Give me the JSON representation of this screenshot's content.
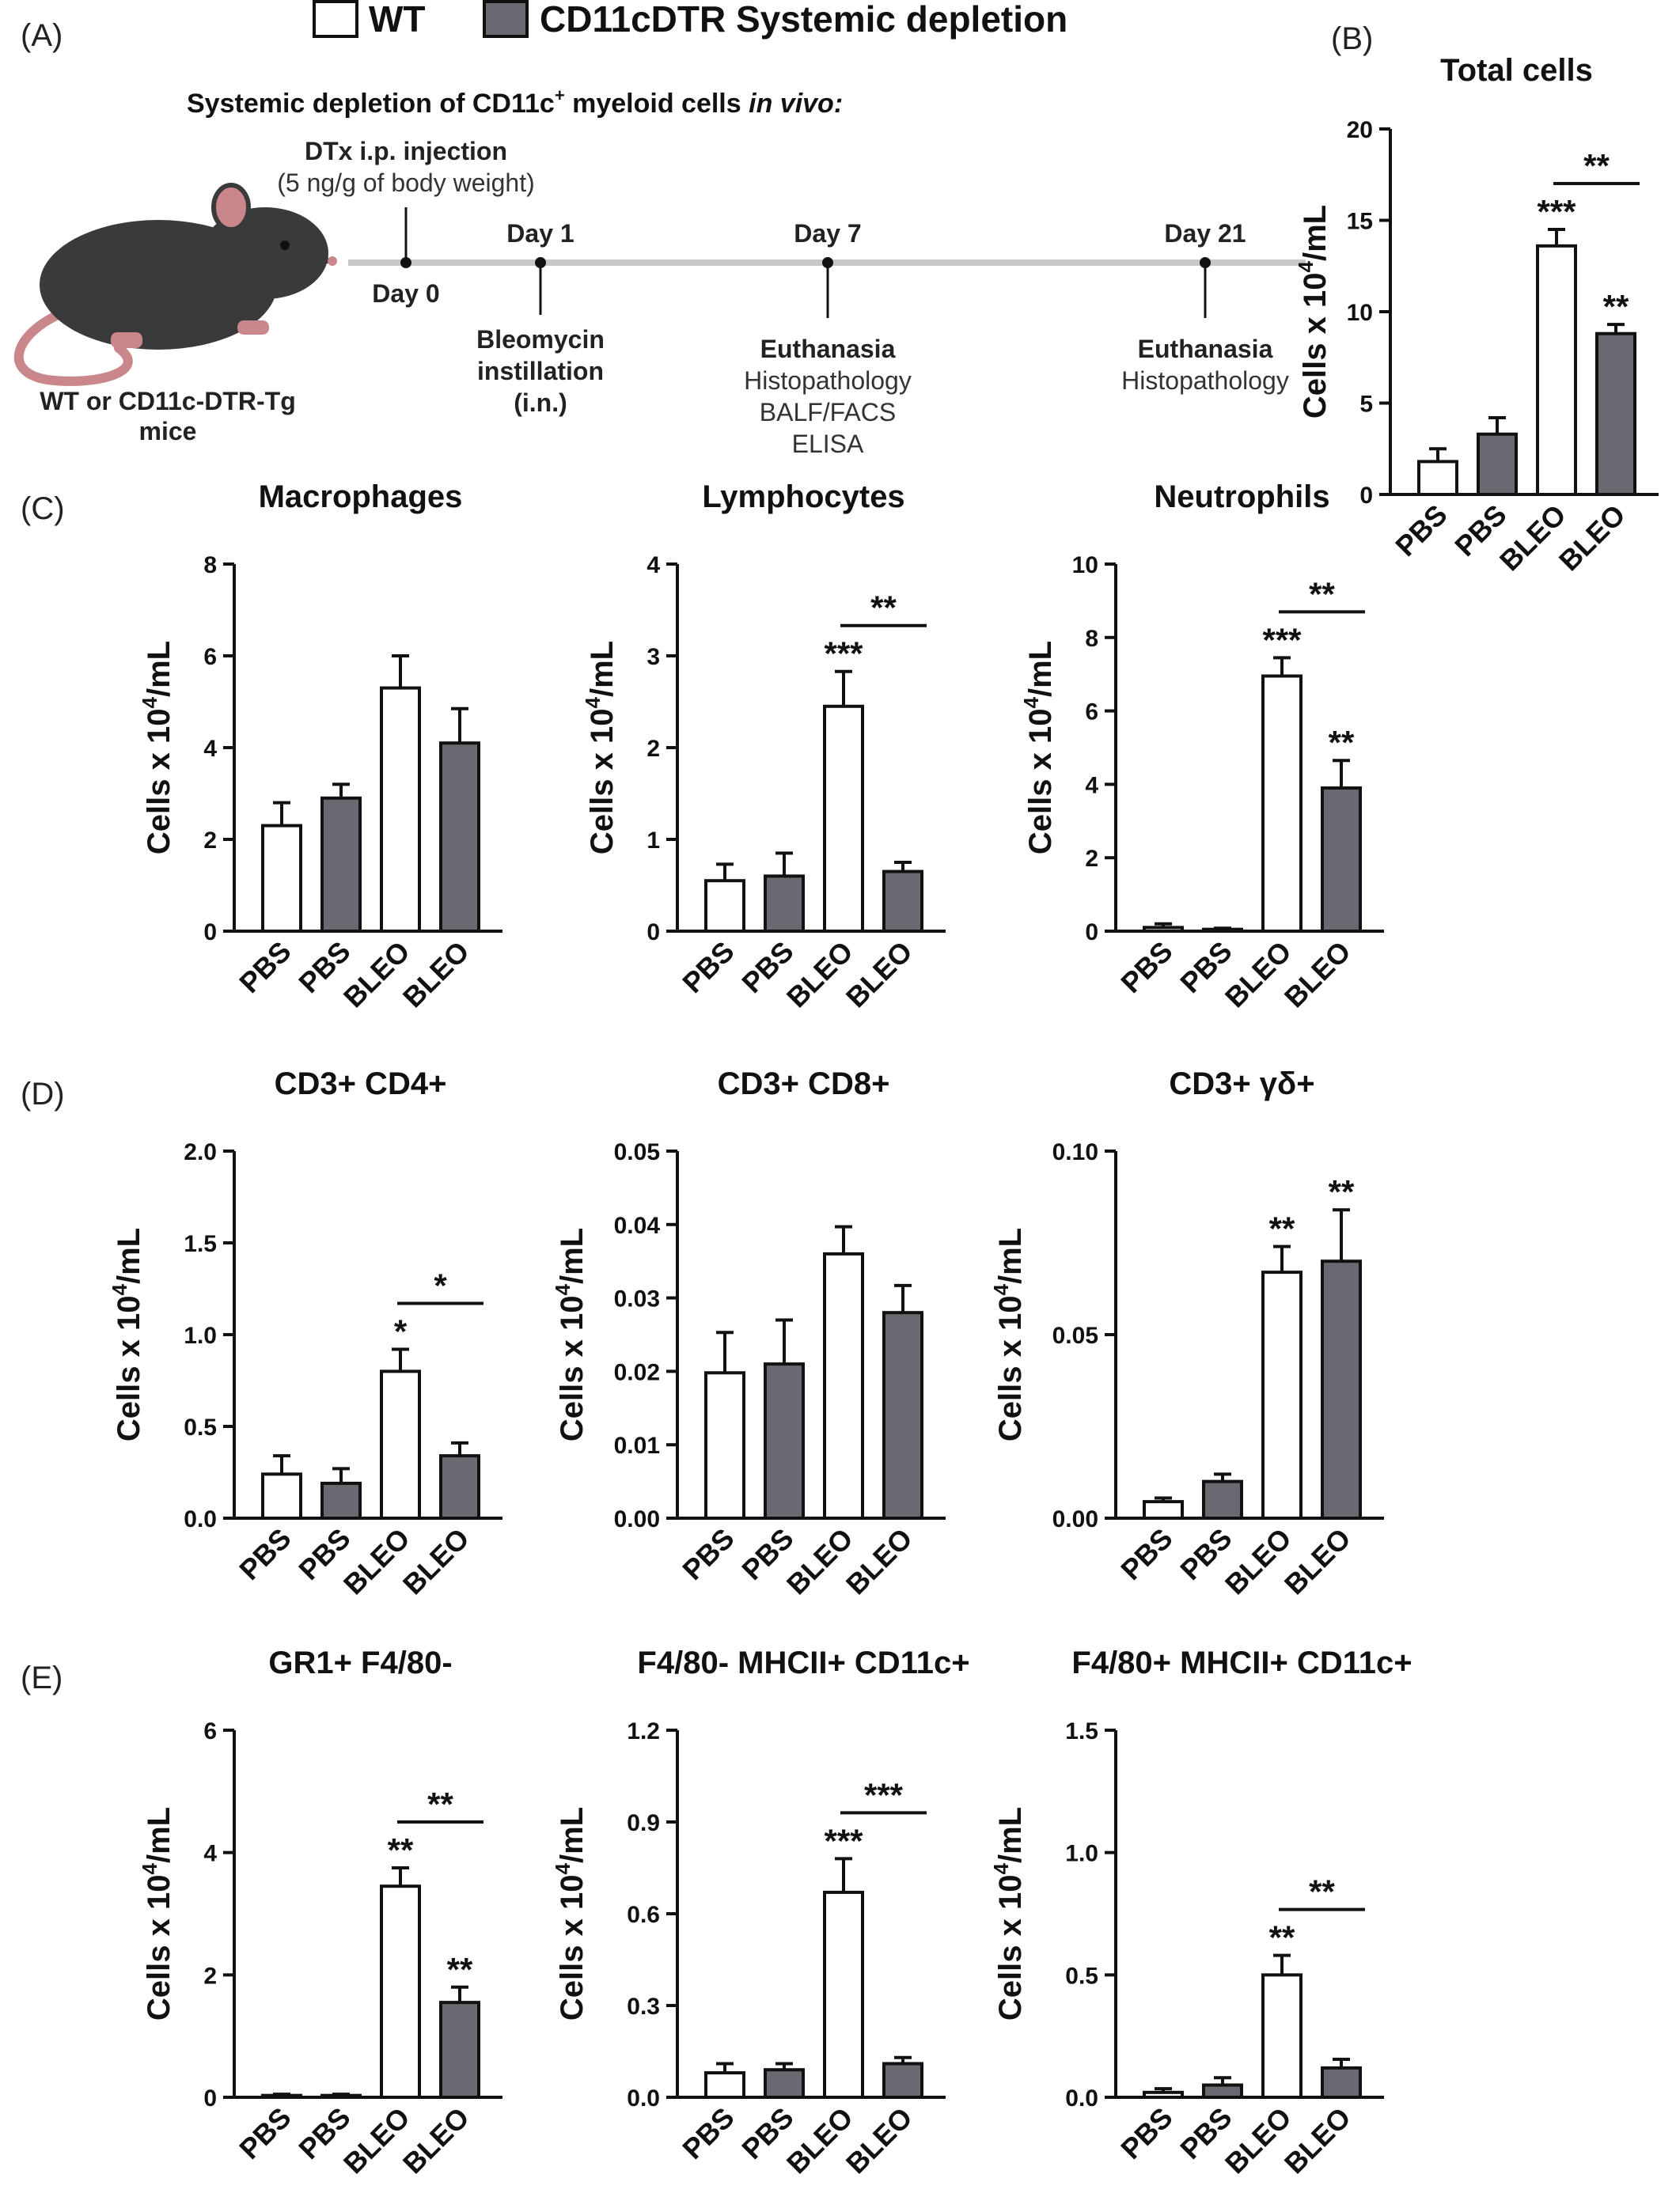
{
  "colors": {
    "wt": "#ffffff",
    "dtr": "#6a6870",
    "axis": "#111111",
    "timeline": "#c8c8c8",
    "mouse": "#3a3a3a",
    "mouse_pink": "#c9878c"
  },
  "legend": [
    {
      "label": "WT",
      "color": "#ffffff"
    },
    {
      "label": "CD11cDTR Systemic depletion",
      "color": "#6a6870"
    }
  ],
  "panels": [
    "(A)",
    "(B)",
    "(C)",
    "(D)",
    "(E)"
  ],
  "schema": {
    "title_main": "Systemic depletion of CD11c",
    "title_sup": "+",
    "title_mid": " myeloid cells ",
    "title_italic": "in vivo:",
    "mouse_label_1": "WT or CD11c-DTR-Tg",
    "mouse_label_2": "mice",
    "dtx_1": "DTx i.p. injection",
    "dtx_2": "(5 ng/g of body weight)",
    "events": [
      {
        "day": "Day 0",
        "lines": []
      },
      {
        "day": "Day 1",
        "lines": [
          {
            "t": "Bleomycin",
            "b": true
          },
          {
            "t": "instillation",
            "b": true
          },
          {
            "t": "(i.n.)",
            "b": true
          }
        ]
      },
      {
        "day": "Day 7",
        "lines": [
          {
            "t": "Euthanasia",
            "b": true
          },
          {
            "t": "Histopathology",
            "b": false
          },
          {
            "t": "BALF/FACS",
            "b": false
          },
          {
            "t": "ELISA",
            "b": false
          }
        ]
      },
      {
        "day": "Day 21",
        "lines": [
          {
            "t": "Euthanasia",
            "b": true
          },
          {
            "t": "Histopathology",
            "b": false
          }
        ]
      }
    ]
  },
  "chart_data": [
    {
      "type": "bar",
      "title": "Total cells",
      "ylabel_pre": "Cells x 10",
      "ylabel_sup": "4",
      "ylabel_post": "/mL",
      "categories": [
        "PBS",
        "PBS",
        "BLEO",
        "BLEO"
      ],
      "groups": [
        "WT",
        "CD11cDTR",
        "WT",
        "CD11cDTR"
      ],
      "values": [
        1.8,
        3.3,
        13.6,
        8.8
      ],
      "errors": [
        0.7,
        0.9,
        0.9,
        0.5
      ],
      "ylim": [
        0,
        20
      ],
      "yticks": [
        "0",
        "5",
        "10",
        "15",
        "20"
      ],
      "stars": [
        "",
        "",
        "***",
        "**"
      ],
      "bracket": "**"
    },
    {
      "type": "bar",
      "title": "Macrophages",
      "ylabel_pre": "Cells x 10",
      "ylabel_sup": "4",
      "ylabel_post": "/mL",
      "categories": [
        "PBS",
        "PBS",
        "BLEO",
        "BLEO"
      ],
      "groups": [
        "WT",
        "CD11cDTR",
        "WT",
        "CD11cDTR"
      ],
      "values": [
        2.3,
        2.9,
        5.3,
        4.1
      ],
      "errors": [
        0.5,
        0.3,
        0.7,
        0.75
      ],
      "ylim": [
        0,
        8
      ],
      "yticks": [
        "0",
        "2",
        "4",
        "6",
        "8"
      ],
      "stars": [
        "",
        "",
        "",
        ""
      ],
      "bracket": ""
    },
    {
      "type": "bar",
      "title": "Lymphocytes",
      "ylabel_pre": "Cells x 10",
      "ylabel_sup": "4",
      "ylabel_post": "/mL",
      "categories": [
        "PBS",
        "PBS",
        "BLEO",
        "BLEO"
      ],
      "groups": [
        "WT",
        "CD11cDTR",
        "WT",
        "CD11cDTR"
      ],
      "values": [
        0.55,
        0.6,
        2.45,
        0.65
      ],
      "errors": [
        0.18,
        0.25,
        0.38,
        0.1
      ],
      "ylim": [
        0,
        4
      ],
      "yticks": [
        "0",
        "1",
        "2",
        "3",
        "4"
      ],
      "stars": [
        "",
        "",
        "***",
        ""
      ],
      "bracket": "**"
    },
    {
      "type": "bar",
      "title": "Neutrophils",
      "ylabel_pre": "Cells x 10",
      "ylabel_sup": "4",
      "ylabel_post": "/mL",
      "categories": [
        "PBS",
        "PBS",
        "BLEO",
        "BLEO"
      ],
      "groups": [
        "WT",
        "CD11cDTR",
        "WT",
        "CD11cDTR"
      ],
      "values": [
        0.1,
        0.05,
        6.95,
        3.9
      ],
      "errors": [
        0.1,
        0.03,
        0.5,
        0.75
      ],
      "ylim": [
        0,
        10
      ],
      "yticks": [
        "0",
        "2",
        "4",
        "6",
        "8",
        "10"
      ],
      "stars": [
        "",
        "",
        "***",
        "**"
      ],
      "bracket": "**"
    },
    {
      "type": "bar",
      "title": "CD3+ CD4+",
      "ylabel_pre": "Cells x 10",
      "ylabel_sup": "4",
      "ylabel_post": "/mL",
      "categories": [
        "PBS",
        "PBS",
        "BLEO",
        "BLEO"
      ],
      "groups": [
        "WT",
        "CD11cDTR",
        "WT",
        "CD11cDTR"
      ],
      "values": [
        0.24,
        0.19,
        0.8,
        0.34
      ],
      "errors": [
        0.1,
        0.08,
        0.12,
        0.07
      ],
      "ylim": [
        0,
        2
      ],
      "yticks": [
        "0.0",
        "0.5",
        "1.0",
        "1.5",
        "2.0"
      ],
      "stars": [
        "",
        "",
        "*",
        ""
      ],
      "bracket": "*"
    },
    {
      "type": "bar",
      "title": "CD3+ CD8+",
      "ylabel_pre": "Cells x 10",
      "ylabel_sup": "4",
      "ylabel_post": "/mL",
      "categories": [
        "PBS",
        "PBS",
        "BLEO",
        "BLEO"
      ],
      "groups": [
        "WT",
        "CD11cDTR",
        "WT",
        "CD11cDTR"
      ],
      "values": [
        0.0198,
        0.021,
        0.036,
        0.028
      ],
      "errors": [
        0.0055,
        0.006,
        0.0037,
        0.0037
      ],
      "ylim": [
        0,
        0.05
      ],
      "yticks": [
        "0.00",
        "0.01",
        "0.02",
        "0.03",
        "0.04",
        "0.05"
      ],
      "stars": [
        "",
        "",
        "",
        ""
      ],
      "bracket": ""
    },
    {
      "type": "bar",
      "title": "CD3+ γδ+",
      "ylabel_pre": "Cells x 10",
      "ylabel_sup": "4",
      "ylabel_post": "/mL",
      "categories": [
        "PBS",
        "PBS",
        "BLEO",
        "BLEO"
      ],
      "groups": [
        "WT",
        "CD11cDTR",
        "WT",
        "CD11cDTR"
      ],
      "values": [
        0.0045,
        0.01,
        0.067,
        0.07
      ],
      "errors": [
        0.001,
        0.002,
        0.007,
        0.014
      ],
      "ylim": [
        0,
        0.1
      ],
      "yticks": [
        "0.00",
        "0.05",
        "0.10"
      ],
      "stars": [
        "",
        "",
        "**",
        "**"
      ],
      "bracket": ""
    },
    {
      "type": "bar",
      "title": "GR1+ F4/80-",
      "ylabel_pre": "Cells x 10",
      "ylabel_sup": "4",
      "ylabel_post": "/mL",
      "categories": [
        "PBS",
        "PBS",
        "BLEO",
        "BLEO"
      ],
      "groups": [
        "WT",
        "CD11cDTR",
        "WT",
        "CD11cDTR"
      ],
      "values": [
        0.03,
        0.03,
        3.45,
        1.55
      ],
      "errors": [
        0.02,
        0.02,
        0.3,
        0.25
      ],
      "ylim": [
        0,
        6
      ],
      "yticks": [
        "0",
        "2",
        "4",
        "6"
      ],
      "stars": [
        "",
        "",
        "**",
        "**"
      ],
      "bracket": "**"
    },
    {
      "type": "bar",
      "title": "F4/80- MHCII+ CD11c+",
      "ylabel_pre": "Cells x 10",
      "ylabel_sup": "4",
      "ylabel_post": "/mL",
      "categories": [
        "PBS",
        "PBS",
        "BLEO",
        "BLEO"
      ],
      "groups": [
        "WT",
        "CD11cDTR",
        "WT",
        "CD11cDTR"
      ],
      "values": [
        0.08,
        0.09,
        0.67,
        0.11
      ],
      "errors": [
        0.03,
        0.02,
        0.11,
        0.02
      ],
      "ylim": [
        0,
        1.2
      ],
      "yticks": [
        "0.0",
        "0.3",
        "0.6",
        "0.9",
        "1.2"
      ],
      "stars": [
        "",
        "",
        "***",
        ""
      ],
      "bracket": "***"
    },
    {
      "type": "bar",
      "title": "F4/80+ MHCII+ CD11c+",
      "ylabel_pre": "Cells x 10",
      "ylabel_sup": "4",
      "ylabel_post": "/mL",
      "categories": [
        "PBS",
        "PBS",
        "BLEO",
        "BLEO"
      ],
      "groups": [
        "WT",
        "CD11cDTR",
        "WT",
        "CD11cDTR"
      ],
      "values": [
        0.02,
        0.05,
        0.5,
        0.12
      ],
      "errors": [
        0.015,
        0.03,
        0.08,
        0.035
      ],
      "ylim": [
        0,
        1.5
      ],
      "yticks": [
        "0.0",
        "0.5",
        "1.0",
        "1.5"
      ],
      "stars": [
        "",
        "",
        "**",
        ""
      ],
      "bracket": "**"
    }
  ]
}
